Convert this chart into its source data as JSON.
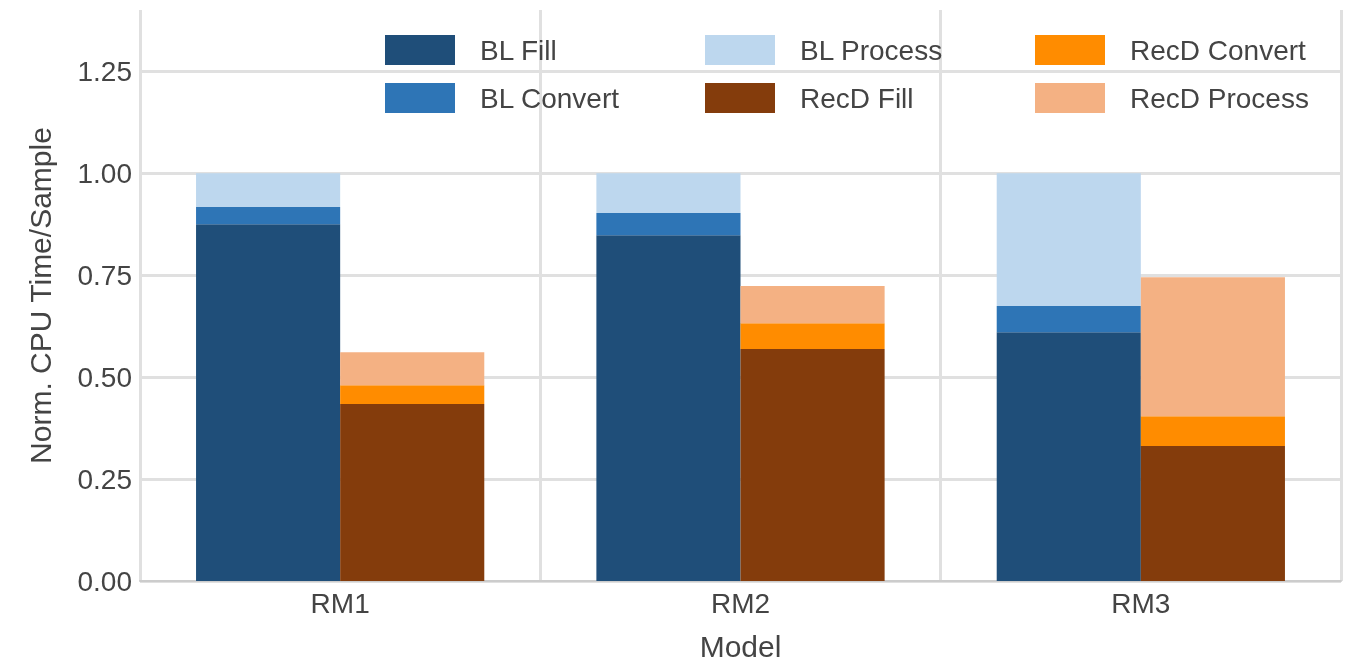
{
  "chart_data": {
    "type": "bar",
    "xlabel": "Model",
    "ylabel": "Norm. CPU Time/Sample",
    "categories": [
      "RM1",
      "RM2",
      "RM3"
    ],
    "series": [
      {
        "name": "BL Fill",
        "color": "#1f4e79",
        "values": [
          0.875,
          0.848,
          0.61
        ],
        "base": [
          0,
          0,
          0
        ]
      },
      {
        "name": "BL Convert",
        "color": "#2e75b6",
        "values": [
          0.042,
          0.054,
          0.064
        ],
        "base": [
          0.875,
          0.848,
          0.61
        ]
      },
      {
        "name": "BL Process",
        "color": "#bdd7ee",
        "values": [
          0.083,
          0.098,
          0.326
        ],
        "base": [
          0.917,
          0.902,
          0.674
        ]
      },
      {
        "name": "RecD Fill",
        "color": "#843c0c",
        "values": [
          0.434,
          0.569,
          0.331
        ],
        "base": [
          0,
          0,
          0
        ]
      },
      {
        "name": "RecD Convert",
        "color": "#ff8c00",
        "values": [
          0.046,
          0.063,
          0.073
        ],
        "base": [
          0.434,
          0.569,
          0.331
        ]
      },
      {
        "name": "RecD Process",
        "color": "#f4b183",
        "values": [
          0.081,
          0.091,
          0.341
        ],
        "base": [
          0.48,
          0.632,
          0.404
        ]
      }
    ],
    "ylim": [
      0,
      1.4
    ],
    "yticks": [
      {
        "value": 0,
        "label": "0.00"
      },
      {
        "value": 0.25,
        "label": "0.25"
      },
      {
        "value": 0.5,
        "label": "0.50"
      },
      {
        "value": 0.75,
        "label": "0.75"
      },
      {
        "value": 1,
        "label": "1.00"
      },
      {
        "value": 1.25,
        "label": "1.25"
      }
    ],
    "grid": true,
    "legend": "top right"
  }
}
